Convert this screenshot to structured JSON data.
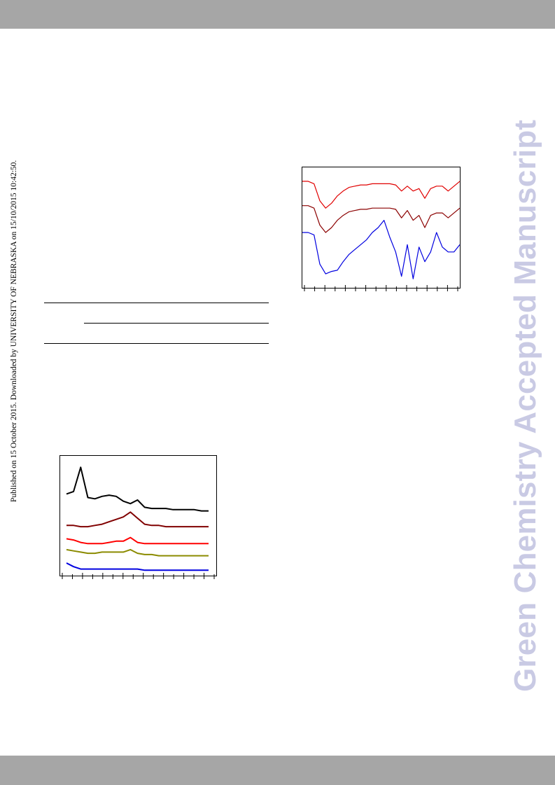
{
  "page": {
    "header_band_color": "#a6a6a6",
    "footer_band_color": "#a6a6a6"
  },
  "published_note": "Published on 15 October 2015. Downloaded by UNIVERSITY OF NEBRASKA on 15/10/2015 10:42:50.",
  "watermark": "Green Chemistry Accepted Manuscript",
  "table": {
    "rules": [
      "top",
      "sub-header",
      "bottom"
    ]
  },
  "chart_data": [
    {
      "type": "line",
      "description_role": "ftir-like spectra, three stacked traces",
      "series": [
        {
          "color": "#e00000",
          "values": [
            0.88,
            0.88,
            0.86,
            0.72,
            0.66,
            0.7,
            0.76,
            0.8,
            0.83,
            0.84,
            0.85,
            0.85,
            0.86,
            0.86,
            0.86,
            0.86,
            0.85,
            0.8,
            0.84,
            0.8,
            0.82,
            0.74,
            0.82,
            0.84,
            0.84,
            0.8,
            0.84,
            0.88
          ]
        },
        {
          "color": "#8b0000",
          "values": [
            0.68,
            0.68,
            0.66,
            0.52,
            0.46,
            0.5,
            0.56,
            0.6,
            0.63,
            0.64,
            0.65,
            0.65,
            0.66,
            0.66,
            0.66,
            0.66,
            0.65,
            0.58,
            0.64,
            0.56,
            0.6,
            0.5,
            0.6,
            0.62,
            0.62,
            0.58,
            0.62,
            0.66
          ]
        },
        {
          "color": "#0000e0",
          "values": [
            0.46,
            0.46,
            0.44,
            0.2,
            0.12,
            0.14,
            0.15,
            0.22,
            0.28,
            0.32,
            0.36,
            0.4,
            0.46,
            0.5,
            0.56,
            0.42,
            0.3,
            0.1,
            0.36,
            0.08,
            0.34,
            0.22,
            0.3,
            0.46,
            0.34,
            0.3,
            0.3,
            0.36
          ]
        }
      ]
    },
    {
      "type": "line",
      "description_role": "xrd-like patterns, five stacked traces",
      "series": [
        {
          "color": "#000000",
          "values": [
            0.68,
            0.7,
            0.9,
            0.65,
            0.64,
            0.66,
            0.67,
            0.66,
            0.62,
            0.6,
            0.63,
            0.57,
            0.56,
            0.56,
            0.56,
            0.55,
            0.55,
            0.55,
            0.55,
            0.54,
            0.54
          ]
        },
        {
          "color": "#800000",
          "values": [
            0.42,
            0.42,
            0.41,
            0.41,
            0.42,
            0.43,
            0.45,
            0.47,
            0.49,
            0.53,
            0.48,
            0.43,
            0.42,
            0.42,
            0.41,
            0.41,
            0.41,
            0.41,
            0.41,
            0.41,
            0.41
          ]
        },
        {
          "color": "#ff0000",
          "values": [
            0.31,
            0.3,
            0.28,
            0.27,
            0.27,
            0.27,
            0.28,
            0.29,
            0.29,
            0.32,
            0.28,
            0.27,
            0.27,
            0.27,
            0.27,
            0.27,
            0.27,
            0.27,
            0.27,
            0.27,
            0.27
          ]
        },
        {
          "color": "#8b8b00",
          "values": [
            0.22,
            0.21,
            0.2,
            0.19,
            0.19,
            0.2,
            0.2,
            0.2,
            0.2,
            0.22,
            0.19,
            0.18,
            0.18,
            0.17,
            0.17,
            0.17,
            0.17,
            0.17,
            0.17,
            0.17,
            0.17
          ]
        },
        {
          "color": "#0000e0",
          "values": [
            0.11,
            0.08,
            0.06,
            0.06,
            0.06,
            0.06,
            0.06,
            0.06,
            0.06,
            0.06,
            0.06,
            0.05,
            0.05,
            0.05,
            0.05,
            0.05,
            0.05,
            0.05,
            0.05,
            0.05,
            0.05
          ]
        }
      ]
    }
  ]
}
